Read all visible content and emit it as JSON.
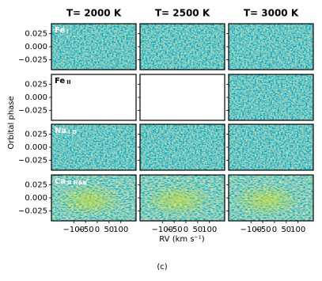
{
  "chart_data": {
    "type": "heatmap-grid",
    "columns": [
      "T= 2000 K",
      "T= 2500 K",
      "T= 3000 K"
    ],
    "rows": [
      {
        "species": "Fe",
        "ion": "I",
        "has_data": [
          true,
          true,
          true
        ]
      },
      {
        "species": "Fe",
        "ion": "II",
        "has_data": [
          false,
          false,
          true
        ]
      },
      {
        "species": "Na",
        "ion": "I D",
        "has_data": [
          true,
          true,
          true
        ]
      },
      {
        "species": "Ca",
        "ion": "II H&K",
        "has_data": [
          true,
          true,
          true
        ]
      }
    ],
    "ylabel": "Orbital phase",
    "xlabel": "RV (km s⁻¹)",
    "ylim": [
      -0.044,
      0.044
    ],
    "yticks": [
      {
        "value": 0.025,
        "label": "0.025"
      },
      {
        "value": 0,
        "label": "0.000"
      },
      {
        "value": -0.025,
        "label": "−0.025"
      }
    ],
    "xlim": [
      -195,
      165
    ],
    "xticks": [
      {
        "value": -100,
        "label": "−100"
      },
      {
        "value": -50,
        "label": "−50"
      },
      0,
      50,
      100
    ]
  },
  "caption": "(c)"
}
